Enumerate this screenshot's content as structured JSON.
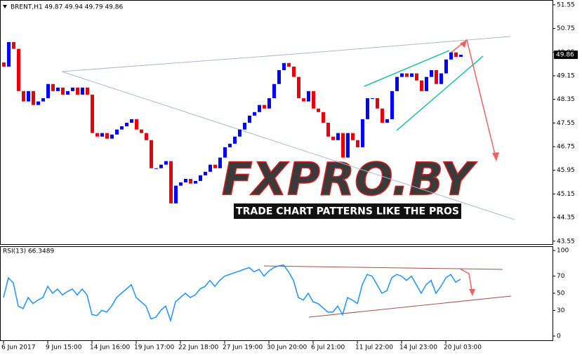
{
  "chart_data": [
    {
      "type": "candlestick",
      "title": "BRENT,H1  49.87 49.94 49.79 49.86",
      "categories": [
        "6 Jun 2017",
        null,
        null,
        null,
        null,
        null,
        null,
        null,
        null,
        "9 Jun 15:00",
        null,
        null,
        null,
        null,
        null,
        null,
        null,
        null,
        "14 Jun 16:00",
        null,
        null,
        null,
        null,
        null,
        null,
        null,
        null,
        "19 Jun 17:00",
        null,
        null,
        null,
        null,
        null,
        null,
        null,
        null,
        "22 Jun 18:00",
        null,
        null,
        null,
        null,
        null,
        null,
        null,
        null,
        "27 Jun 19:00",
        null,
        null,
        null,
        null,
        null,
        null,
        null,
        null,
        "30 Jun 20:00",
        null,
        null,
        null,
        null,
        null,
        null,
        null,
        null,
        "6 Jul 21:00",
        null,
        null,
        null,
        null,
        null,
        null,
        null,
        null,
        "11 Jul 22:00",
        null,
        null,
        null,
        null,
        null,
        null,
        null,
        null,
        "14 Jul 23:00",
        null,
        null,
        null,
        null,
        null,
        null,
        null,
        null,
        "20 Jul 03:00",
        null,
        null,
        null
      ],
      "open": [
        49.6,
        49.46,
        50.29,
        50.06,
        48.63,
        48.28,
        48.63,
        48.16,
        48.28,
        48.39,
        48.87,
        48.63,
        48.75,
        48.51,
        48.63,
        48.75,
        48.51,
        48.75,
        48.51,
        47.21,
        47.09,
        47.21,
        47.02,
        47.16,
        47.33,
        47.44,
        47.56,
        47.68,
        47.33,
        47.21,
        46.97,
        46.02,
        46.02,
        46.14,
        46.26,
        44.83,
        45.43,
        45.54,
        45.66,
        45.5,
        45.59,
        45.78,
        45.9,
        46.14,
        46.02,
        46.38,
        46.73,
        46.85,
        47.09,
        47.33,
        47.56,
        47.8,
        47.92,
        48.16,
        48.04,
        48.39,
        48.87,
        49.34,
        49.58,
        49.46,
        49.11,
        48.39,
        48.28,
        48.63,
        48.04,
        47.92,
        47.56,
        47.09,
        46.97,
        47.21,
        46.38,
        47.21,
        46.97,
        46.73,
        47.68,
        48.39,
        48.39,
        48.04,
        47.56,
        47.68,
        48.63,
        49.11,
        49.23,
        49.11,
        49.23,
        48.99,
        48.63,
        49.11,
        49.34,
        48.87,
        49.23,
        49.7,
        49.94,
        49.79
      ],
      "close": [
        49.46,
        50.29,
        50.06,
        48.63,
        48.28,
        48.63,
        48.16,
        48.28,
        48.39,
        48.87,
        48.63,
        48.75,
        48.51,
        48.63,
        48.75,
        48.51,
        48.75,
        48.51,
        47.21,
        47.09,
        47.21,
        47.02,
        47.16,
        47.33,
        47.44,
        47.56,
        47.68,
        47.33,
        47.21,
        46.97,
        46.02,
        46.02,
        46.14,
        46.26,
        44.83,
        45.43,
        45.54,
        45.66,
        45.5,
        45.59,
        45.78,
        45.9,
        46.14,
        46.02,
        46.38,
        46.73,
        46.85,
        47.09,
        47.33,
        47.56,
        47.8,
        47.92,
        48.16,
        48.04,
        48.39,
        48.87,
        49.34,
        49.58,
        49.46,
        49.11,
        48.39,
        48.28,
        48.63,
        48.04,
        47.92,
        47.56,
        47.09,
        46.97,
        47.21,
        46.38,
        47.21,
        46.97,
        46.73,
        47.68,
        48.39,
        48.39,
        48.04,
        47.56,
        47.68,
        48.63,
        49.11,
        49.23,
        49.11,
        49.23,
        48.99,
        48.63,
        49.11,
        49.34,
        48.87,
        49.23,
        49.7,
        49.94,
        49.79,
        49.86
      ],
      "ylim": [
        43.45,
        51.69
      ],
      "yticks": [
        51.55,
        50.75,
        49.95,
        49.15,
        48.35,
        47.55,
        46.75,
        45.95,
        45.15,
        44.35,
        43.55
      ],
      "last_price": 49.86,
      "up_color": "#0000ff",
      "down_color": "#e8000b",
      "grid": false,
      "watermark": "FXPRO.BY",
      "watermark_subtitle": "TRADE CHART PATTERNS LIKE THE PROS"
    },
    {
      "type": "line",
      "title": "RSI(13) 66.3489",
      "values": [
        45,
        68,
        62,
        35,
        32,
        45,
        38,
        42,
        45,
        58,
        50,
        55,
        48,
        52,
        55,
        48,
        55,
        48,
        25,
        24,
        30,
        28,
        35,
        45,
        50,
        55,
        60,
        45,
        40,
        35,
        20,
        22,
        30,
        35,
        18,
        40,
        45,
        50,
        45,
        48,
        55,
        58,
        65,
        58,
        65,
        70,
        72,
        74,
        76,
        78,
        80,
        75,
        78,
        70,
        76,
        80,
        82,
        83,
        75,
        65,
        45,
        42,
        50,
        40,
        38,
        33,
        28,
        28,
        35,
        25,
        45,
        42,
        38,
        60,
        72,
        70,
        60,
        50,
        53,
        68,
        72,
        70,
        65,
        70,
        60,
        50,
        60,
        65,
        50,
        58,
        68,
        72,
        63,
        66.3489
      ],
      "color": "#1e90ff",
      "ylim": [
        0,
        100
      ],
      "yticks": [
        100,
        70,
        50,
        30,
        0
      ]
    }
  ]
}
